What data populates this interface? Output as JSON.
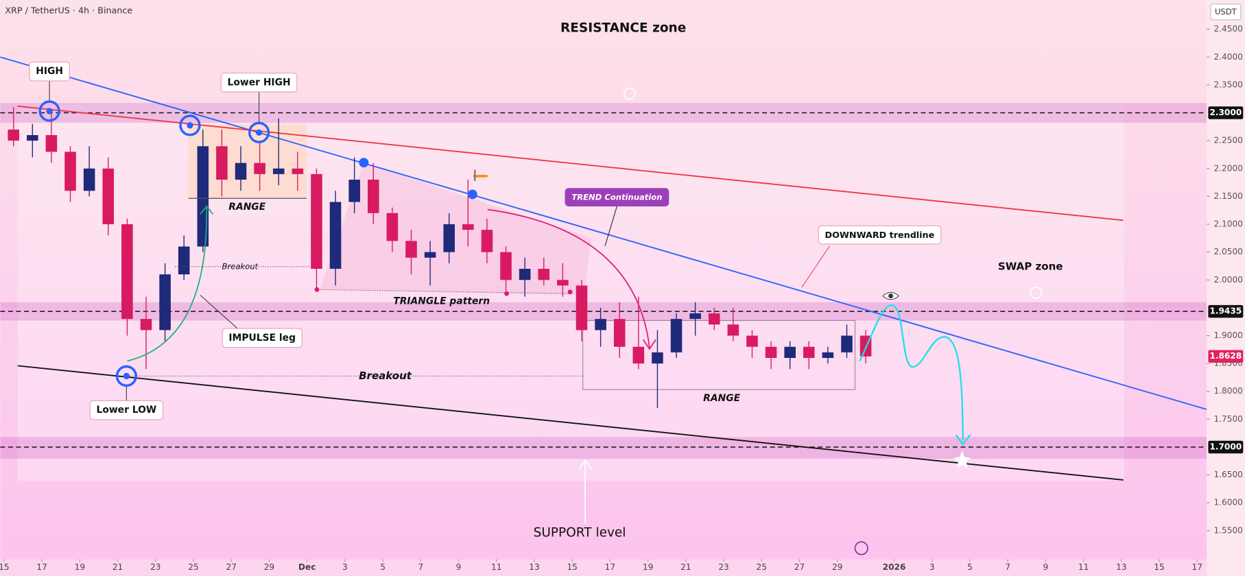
{
  "chart_data": {
    "type": "candlestick",
    "title": "XRP / TetherUS · 4h · Binance",
    "currency": "USDT",
    "xlim": [
      -0.2,
      63.5
    ],
    "ylim": [
      1.4985,
      2.5025
    ],
    "xticks": [
      {
        "value": 0,
        "label": "15"
      },
      {
        "value": 2,
        "label": "17"
      },
      {
        "value": 4,
        "label": "19"
      },
      {
        "value": 6,
        "label": "21"
      },
      {
        "value": 8,
        "label": "23"
      },
      {
        "value": 10,
        "label": "25"
      },
      {
        "value": 12,
        "label": "27"
      },
      {
        "value": 14,
        "label": "29"
      },
      {
        "value": 16,
        "label": "Dec"
      },
      {
        "value": 18,
        "label": "3"
      },
      {
        "value": 20,
        "label": "5"
      },
      {
        "value": 22,
        "label": "7"
      },
      {
        "value": 24,
        "label": "9"
      },
      {
        "value": 26,
        "label": "11"
      },
      {
        "value": 28,
        "label": "13"
      },
      {
        "value": 30,
        "label": "15"
      },
      {
        "value": 32,
        "label": "17"
      },
      {
        "value": 34,
        "label": "19"
      },
      {
        "value": 36,
        "label": "21"
      },
      {
        "value": 38,
        "label": "23"
      },
      {
        "value": 40,
        "label": "25"
      },
      {
        "value": 42,
        "label": "27"
      },
      {
        "value": 44,
        "label": "29"
      },
      {
        "value": 47,
        "label": "2026"
      },
      {
        "value": 49,
        "label": "3"
      },
      {
        "value": 51,
        "label": "5"
      },
      {
        "value": 53,
        "label": "7"
      },
      {
        "value": 55,
        "label": "9"
      },
      {
        "value": 57,
        "label": "11"
      },
      {
        "value": 59,
        "label": "13"
      },
      {
        "value": 61,
        "label": "15"
      },
      {
        "value": 63,
        "label": "17"
      }
    ],
    "yticks": [
      {
        "value": 1.55,
        "label": "1.5500"
      },
      {
        "value": 1.6,
        "label": "1.6000"
      },
      {
        "value": 1.65,
        "label": "1.6500"
      },
      {
        "value": 1.75,
        "label": "1.7500"
      },
      {
        "value": 1.8,
        "label": "1.8000"
      },
      {
        "value": 1.85,
        "label": "1.8500"
      },
      {
        "value": 1.9,
        "label": "1.9000"
      },
      {
        "value": 2.0,
        "label": "2.0000"
      },
      {
        "value": 2.05,
        "label": "2.0500"
      },
      {
        "value": 2.1,
        "label": "2.1000"
      },
      {
        "value": 2.15,
        "label": "2.1500"
      },
      {
        "value": 2.2,
        "label": "2.2000"
      },
      {
        "value": 2.25,
        "label": "2.2500"
      },
      {
        "value": 2.35,
        "label": "2.3500"
      },
      {
        "value": 2.4,
        "label": "2.4000"
      },
      {
        "value": 2.45,
        "label": "2.4500"
      }
    ],
    "up_color": "#1f2a7a",
    "down_color": "#d81b60",
    "x": [
      0.5,
      1.5,
      2.5,
      3.5,
      4.5,
      5.5,
      6.5,
      7.5,
      8.5,
      9.5,
      10.5,
      11.5,
      12.5,
      13.5,
      14.5,
      15.5,
      16.5,
      17.5,
      18.5,
      19.5,
      20.5,
      21.5,
      22.5,
      23.5,
      24.5,
      25.5,
      26.5,
      27.5,
      28.5,
      29.5,
      30.5,
      31.5,
      32.5,
      33.5,
      34.5,
      35.5,
      36.5,
      37.5,
      38.5,
      39.5,
      40.5,
      41.5,
      42.5,
      43.5,
      44.5,
      45.5
    ],
    "open": [
      2.27,
      2.25,
      2.26,
      2.23,
      2.16,
      2.2,
      2.1,
      1.93,
      1.91,
      2.01,
      2.06,
      2.24,
      2.18,
      2.21,
      2.19,
      2.2,
      2.19,
      2.02,
      2.14,
      2.18,
      2.12,
      2.07,
      2.04,
      2.05,
      2.1,
      2.09,
      2.05,
      2.0,
      2.02,
      2.0,
      1.99,
      1.91,
      1.93,
      1.88,
      1.85,
      1.87,
      1.93,
      1.94,
      1.92,
      1.9,
      1.88,
      1.86,
      1.88,
      1.86,
      1.87,
      1.9
    ],
    "high": [
      2.31,
      2.28,
      2.3,
      2.24,
      2.24,
      2.22,
      2.11,
      1.97,
      2.03,
      2.08,
      2.27,
      2.27,
      2.24,
      2.25,
      2.29,
      2.23,
      2.2,
      2.16,
      2.22,
      2.21,
      2.13,
      2.09,
      2.07,
      2.12,
      2.18,
      2.11,
      2.06,
      2.04,
      2.04,
      2.03,
      2.0,
      1.95,
      1.96,
      1.97,
      1.91,
      1.94,
      1.96,
      1.95,
      1.95,
      1.91,
      1.89,
      1.89,
      1.89,
      1.88,
      1.92,
      1.91
    ],
    "low": [
      2.24,
      2.22,
      2.21,
      2.14,
      2.15,
      2.08,
      1.9,
      1.84,
      1.89,
      2.0,
      2.05,
      2.15,
      2.16,
      2.16,
      2.17,
      2.16,
      1.98,
      1.99,
      2.12,
      2.1,
      2.05,
      2.01,
      1.99,
      2.03,
      2.06,
      2.03,
      1.98,
      1.97,
      1.99,
      1.97,
      1.89,
      1.88,
      1.86,
      1.84,
      1.77,
      1.86,
      1.9,
      1.91,
      1.89,
      1.86,
      1.84,
      1.84,
      1.84,
      1.85,
      1.86,
      1.85
    ],
    "close": [
      2.25,
      2.26,
      2.23,
      2.16,
      2.2,
      2.1,
      1.93,
      1.91,
      2.01,
      2.06,
      2.24,
      2.18,
      2.21,
      2.19,
      2.2,
      2.19,
      2.02,
      2.14,
      2.18,
      2.12,
      2.07,
      2.04,
      2.05,
      2.1,
      2.09,
      2.05,
      2.0,
      2.02,
      2.0,
      1.99,
      1.91,
      1.93,
      1.88,
      1.85,
      1.87,
      1.93,
      1.94,
      1.92,
      1.9,
      1.88,
      1.86,
      1.88,
      1.86,
      1.87,
      1.9,
      1.8628
    ],
    "levels": [
      {
        "value": 2.3,
        "label": "2.3000"
      },
      {
        "value": 1.9435,
        "label": "1.9435"
      },
      {
        "value": 1.7,
        "label": "1.7000"
      }
    ],
    "last_price": {
      "value": 1.8628,
      "label": "1.8628"
    },
    "zones": [
      [
        2.282,
        2.3175
      ],
      [
        1.927,
        1.96
      ],
      [
        1.679,
        1.718
      ]
    ],
    "trendlines": [
      {
        "color": "#2962ff",
        "points": [
          [
            -0.2,
            2.4
          ],
          [
            63.5,
            1.7677
          ]
        ]
      },
      {
        "color": "#f23645",
        "points": [
          [
            0.72,
            2.312
          ],
          [
            59.1,
            2.107
          ]
        ]
      },
      {
        "color": "#111111",
        "points": [
          [
            0.72,
            1.846
          ],
          [
            59.1,
            1.641
          ]
        ]
      }
    ],
    "annotations": [
      "RESISTANCE zone",
      "HIGH",
      "Lower HIGH",
      "RANGE",
      "Breakout",
      "IMPULSE leg",
      "Lower LOW",
      "Breakout",
      "TRIANGLE pattern",
      "TREND Continuation",
      "DOWNWARD trendline",
      "SWAP zone",
      "RANGE",
      "SUPPORT level"
    ]
  }
}
